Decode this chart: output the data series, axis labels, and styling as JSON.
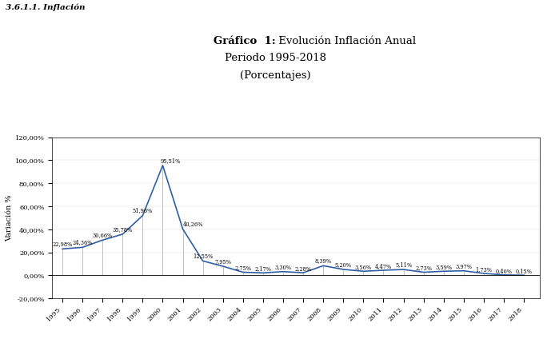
{
  "years": [
    1995,
    1996,
    1997,
    1998,
    1999,
    2000,
    2001,
    2002,
    2003,
    2004,
    2005,
    2006,
    2007,
    2008,
    2009,
    2010,
    2011,
    2012,
    2013,
    2014,
    2015,
    2016,
    2017,
    2018
  ],
  "values": [
    22.98,
    24.36,
    30.66,
    35.78,
    51.96,
    95.51,
    40.26,
    12.55,
    7.95,
    2.75,
    2.17,
    3.3,
    2.28,
    8.39,
    5.2,
    3.56,
    4.47,
    5.11,
    2.73,
    3.59,
    3.97,
    1.73,
    0.4,
    0.15
  ],
  "labels": [
    "22,98%",
    "24,36%",
    "30,66%",
    "35,78%",
    "51,96%",
    "95,51%",
    "40,26%",
    "12,55%",
    "7,95%",
    "2,75%",
    "2,17%",
    "3,30%",
    "2,28%",
    "8,39%",
    "5,20%",
    "3,56%",
    "4,47%",
    "5,11%",
    "2,73%",
    "3,59%",
    "3,97%",
    "1,73%",
    "0,40%",
    "0,15%"
  ],
  "title_bold": "Gráfico  1:",
  "title_normal": " Evolución Inflación Anual",
  "subtitle1": "Periodo 1995-2018",
  "subtitle2": "(Porcentajes)",
  "ylabel": "Variación %",
  "line_color": "#2e5fa3",
  "background_color": "#ffffff",
  "plot_bg_color": "#ffffff",
  "ylim": [
    -20,
    120
  ],
  "yticks": [
    -20,
    0,
    20,
    40,
    60,
    80,
    100,
    120
  ],
  "ytick_labels": [
    "-20,00%",
    "0,00%",
    "20,00%",
    "40,00%",
    "60,00%",
    "80,00%",
    "100,00%",
    "120,00%"
  ],
  "header_text": "3.6.1.1. Inflación",
  "label_fontsize": 4.8,
  "axis_fontsize": 6.0,
  "ylabel_fontsize": 7.0,
  "title_fontsize": 9.5,
  "header_fontsize": 7.5
}
